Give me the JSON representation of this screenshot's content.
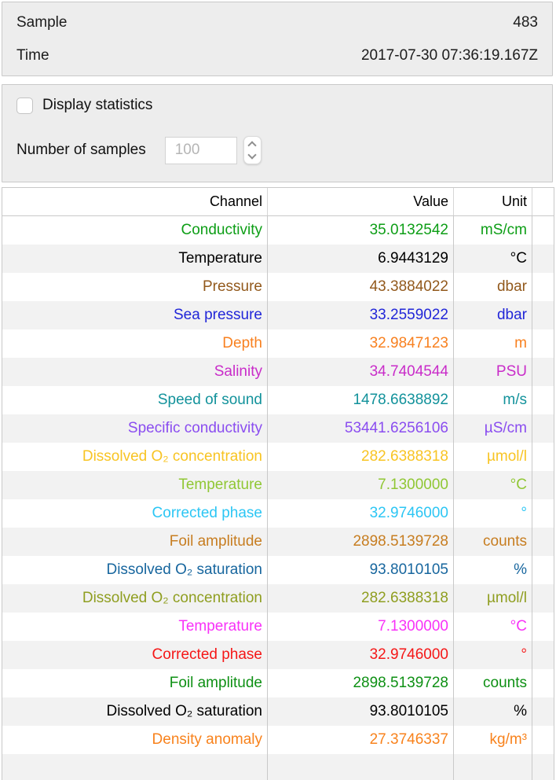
{
  "sample_panel": {
    "rows": [
      {
        "label": "Sample",
        "value": "483"
      },
      {
        "label": "Time",
        "value": "2017-07-30 07:36:19.167Z"
      }
    ]
  },
  "stats_panel": {
    "checkbox_label": "Display statistics",
    "checkbox_checked": false,
    "samples_label": "Number of samples",
    "samples_value": "100"
  },
  "table": {
    "columns": [
      "Channel",
      "Value",
      "Unit"
    ],
    "rows": [
      {
        "channel": "Conductivity",
        "value": "35.0132542",
        "unit": "mS/cm",
        "color": "#0d9e16"
      },
      {
        "channel": "Temperature",
        "value": "6.9443129",
        "unit": "°C",
        "color": "#000000"
      },
      {
        "channel": "Pressure",
        "value": "43.3884022",
        "unit": "dbar",
        "color": "#92591c"
      },
      {
        "channel": "Sea pressure",
        "value": "33.2559022",
        "unit": "dbar",
        "color": "#2126d8"
      },
      {
        "channel": "Depth",
        "value": "32.9847123",
        "unit": "m",
        "color": "#f8801f"
      },
      {
        "channel": "Salinity",
        "value": "34.7404544",
        "unit": "PSU",
        "color": "#c92cc9"
      },
      {
        "channel": "Speed of sound",
        "value": "1478.6638892",
        "unit": "m/s",
        "color": "#12929b"
      },
      {
        "channel": "Specific conductivity",
        "value": "53441.6256106",
        "unit": "µS/cm",
        "color": "#8a4df0"
      },
      {
        "channel": "Dissolved O₂ concentration",
        "value": "282.6388318",
        "unit": "µmol/l",
        "color": "#f8c423"
      },
      {
        "channel": "Temperature",
        "value": "7.1300000",
        "unit": "°C",
        "color": "#90c734"
      },
      {
        "channel": "Corrected phase",
        "value": "32.9746000",
        "unit": "°",
        "color": "#2cc6f4"
      },
      {
        "channel": "Foil amplitude",
        "value": "2898.5139728",
        "unit": "counts",
        "color": "#c77d20"
      },
      {
        "channel": "Dissolved O₂ saturation",
        "value": "93.8010105",
        "unit": "%",
        "color": "#17669e"
      },
      {
        "channel": "Dissolved O₂ concentration",
        "value": "282.6388318",
        "unit": "µmol/l",
        "color": "#8f9e20"
      },
      {
        "channel": "Temperature",
        "value": "7.1300000",
        "unit": "°C",
        "color": "#f832f8"
      },
      {
        "channel": "Corrected phase",
        "value": "32.9746000",
        "unit": "°",
        "color": "#f51717"
      },
      {
        "channel": "Foil amplitude",
        "value": "2898.5139728",
        "unit": "counts",
        "color": "#0e9014"
      },
      {
        "channel": "Dissolved O₂ saturation",
        "value": "93.8010105",
        "unit": "%",
        "color": "#000000"
      },
      {
        "channel": "Density anomaly",
        "value": "27.3746337",
        "unit": "kg/m³",
        "color": "#f8821c"
      }
    ]
  }
}
